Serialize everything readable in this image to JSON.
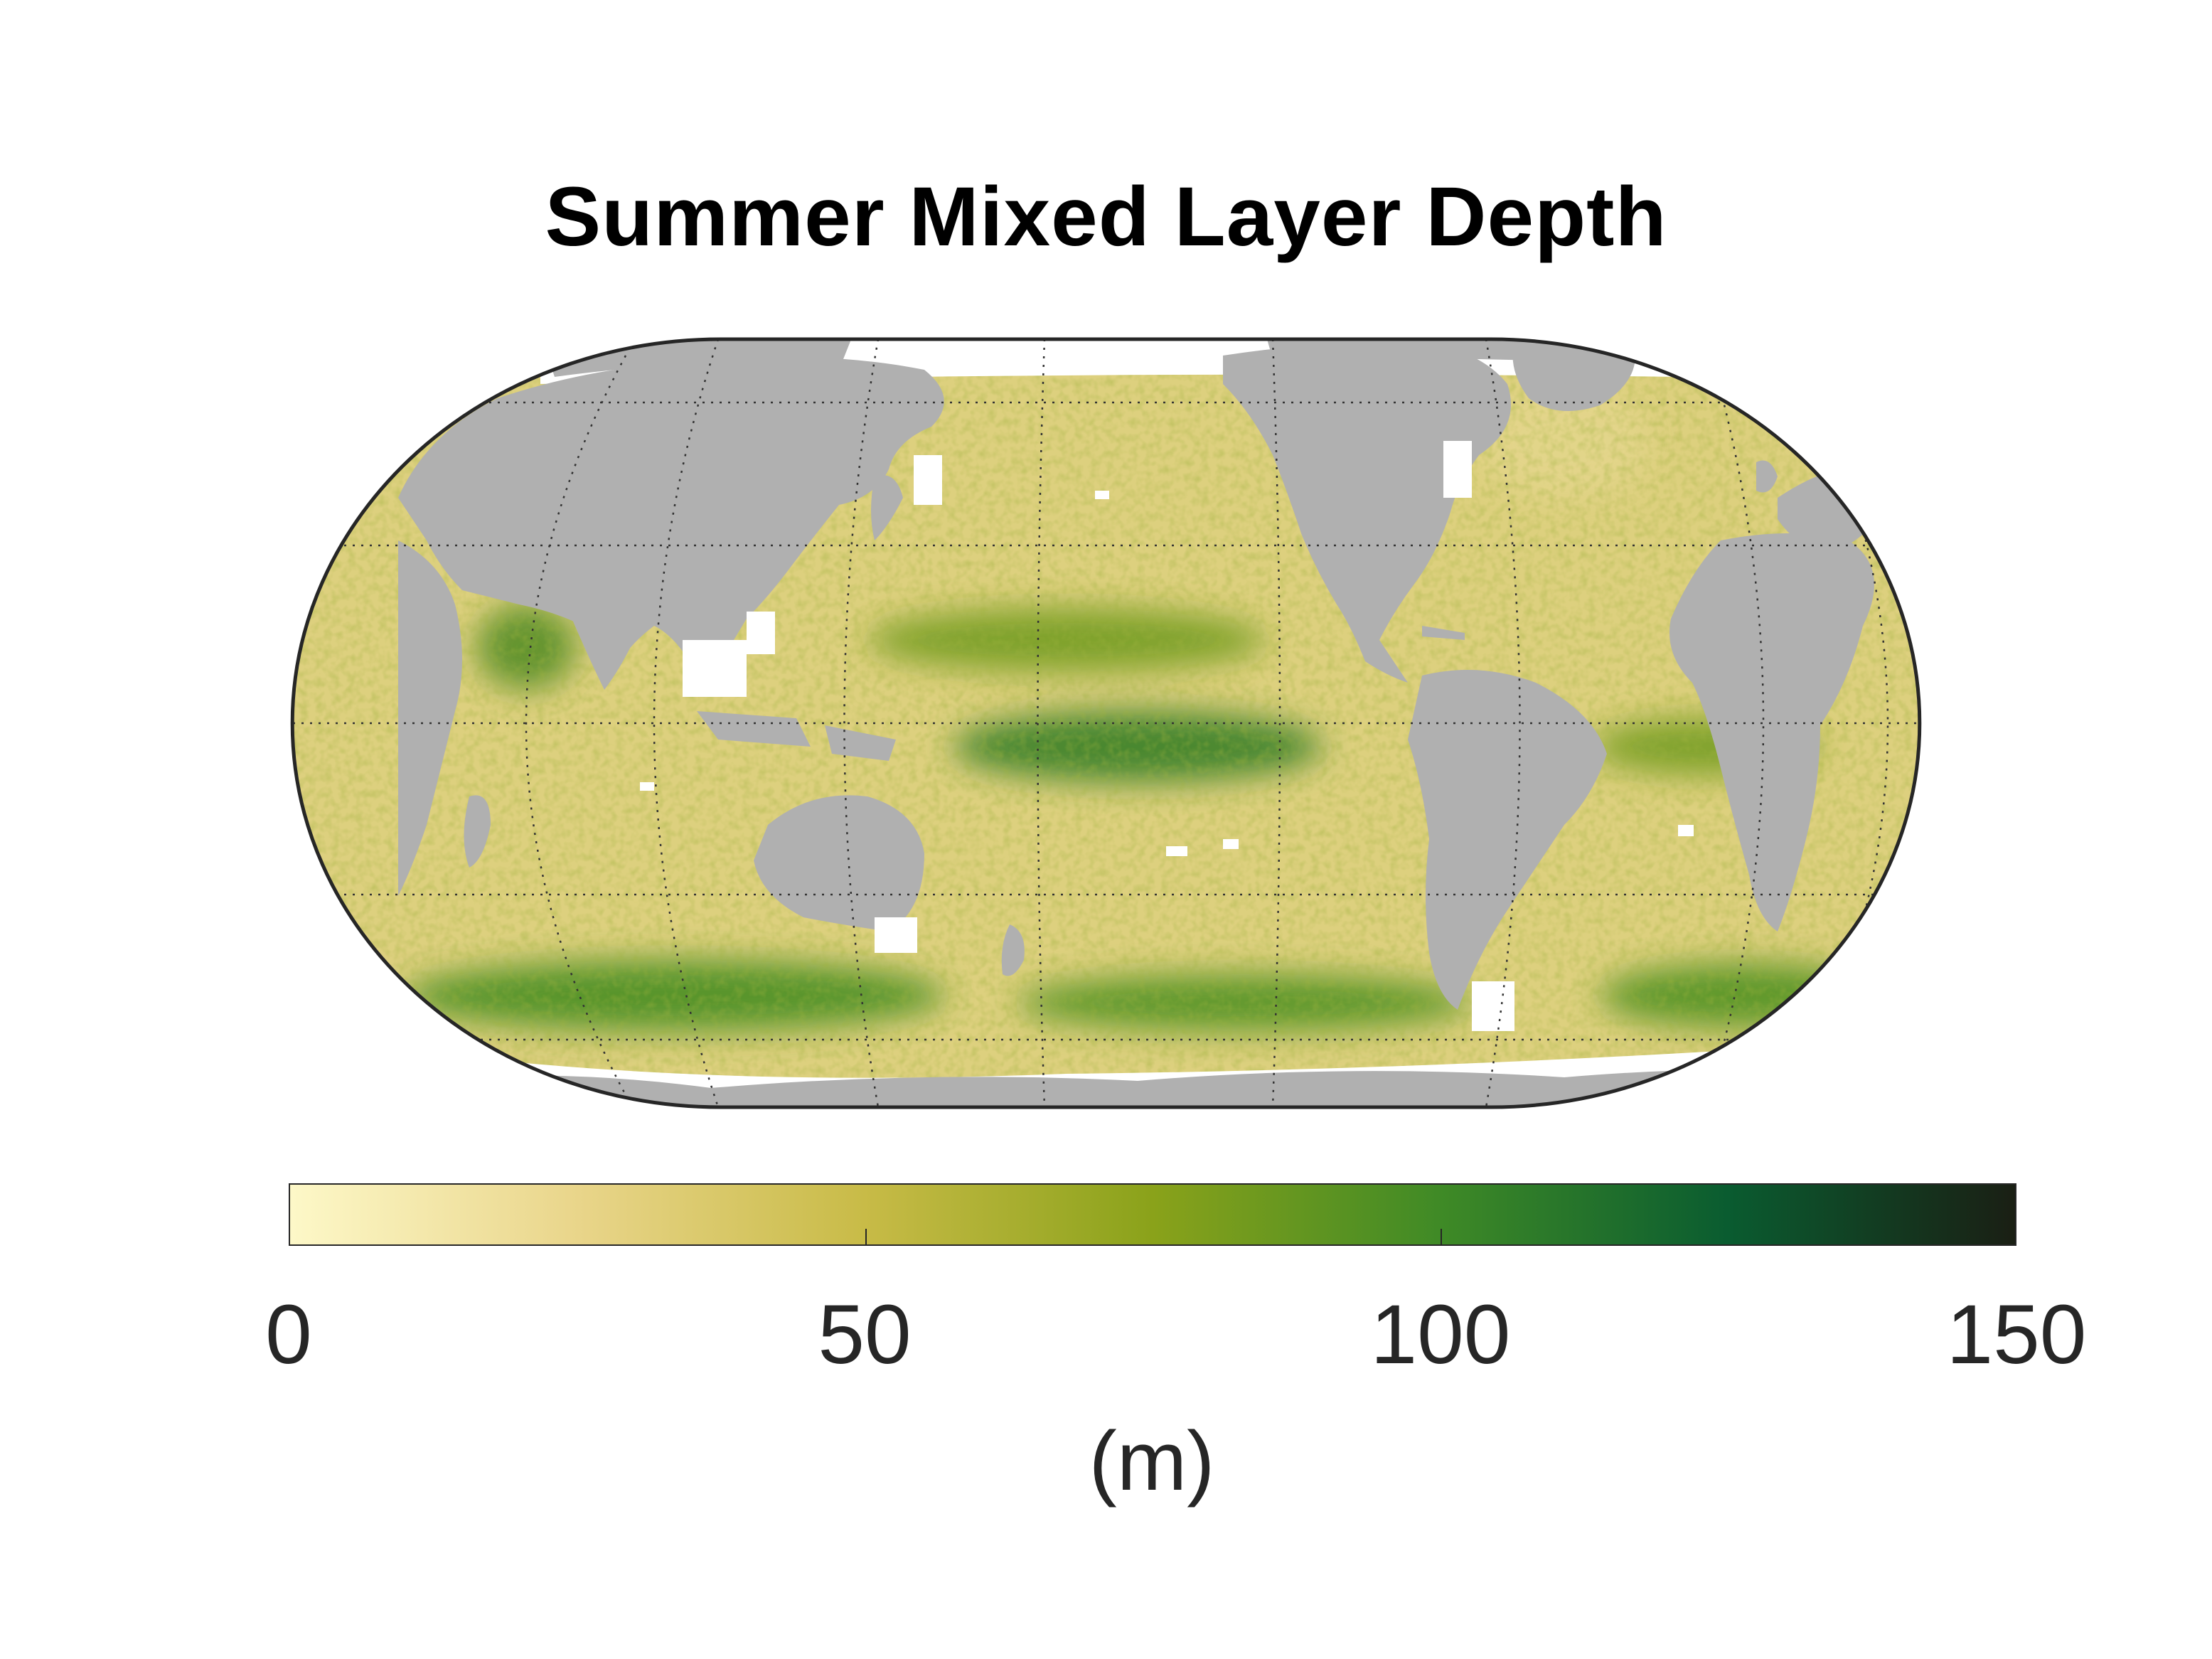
{
  "title": "Summer Mixed Layer Depth",
  "colorbar": {
    "min": 0,
    "max": 150,
    "ticks": [
      "0",
      "50",
      "100",
      "150"
    ],
    "unit_label": "(m)",
    "stops": [
      "#fdf8c8",
      "#e9d58a",
      "#c8bb47",
      "#8aa21a",
      "#3f8a26",
      "#0a5c30",
      "#1a1f14"
    ]
  },
  "colors": {
    "land": "#b0b0b0",
    "ocean_base": "#ddd07e",
    "ice_no_data": "#ffffff",
    "frame": "#262626",
    "grid": "#333333"
  }
}
